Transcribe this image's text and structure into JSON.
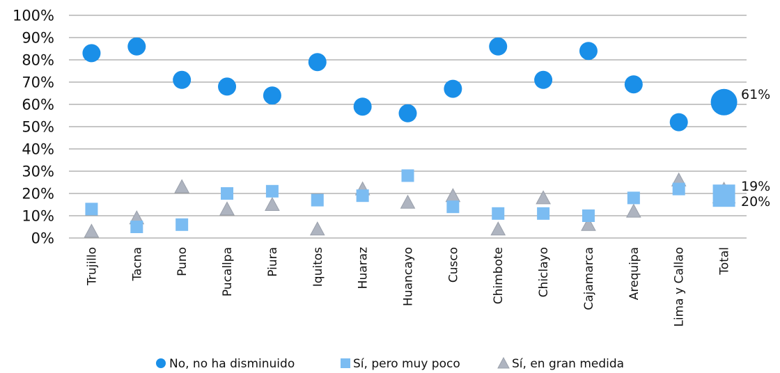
{
  "chart_data": {
    "type": "scatter",
    "categories": [
      "Trujillo",
      "Tacna",
      "Puno",
      "Pucallpa",
      "Piura",
      "Iquitos",
      "Huaraz",
      "Huancayo",
      "Cusco",
      "Chimbote",
      "Chiclayo",
      "Cajamarca",
      "Arequipa",
      "Lima y Callao",
      "Total"
    ],
    "ylim": [
      0,
      100
    ],
    "yticks": [
      "0%",
      "10%",
      "20%",
      "30%",
      "40%",
      "50%",
      "60%",
      "70%",
      "80%",
      "90%",
      "100%"
    ],
    "grid": true,
    "legend": "bottom",
    "series": [
      {
        "name": "No, no ha disminuido",
        "marker": "circle",
        "color": "#1a8fe8",
        "values": [
          83,
          86,
          71,
          68,
          64,
          79,
          59,
          56,
          67,
          86,
          71,
          84,
          69,
          52,
          61
        ]
      },
      {
        "name": "Sí, pero muy poco",
        "marker": "square",
        "color": "#7bbcf2",
        "values": [
          13,
          5,
          6,
          20,
          21,
          17,
          19,
          28,
          14,
          11,
          11,
          10,
          18,
          22,
          19
        ]
      },
      {
        "name": "Sí, en gran medida",
        "marker": "triangle",
        "color": "#aeb4c0",
        "values": [
          3,
          9,
          23,
          13,
          15,
          4,
          22,
          16,
          19,
          4,
          18,
          6,
          12,
          26,
          20
        ]
      }
    ],
    "data_labels": [
      "61%",
      "19%",
      "20%"
    ]
  }
}
